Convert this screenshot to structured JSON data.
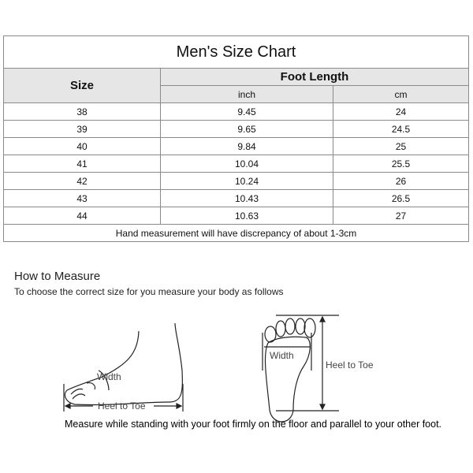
{
  "title": "Men's Size Chart",
  "headers": {
    "size": "Size",
    "foot_length": "Foot Length",
    "inch": "inch",
    "cm": "cm"
  },
  "rows": [
    {
      "size": "38",
      "inch": "9.45",
      "cm": "24"
    },
    {
      "size": "39",
      "inch": "9.65",
      "cm": "24.5"
    },
    {
      "size": "40",
      "inch": "9.84",
      "cm": "25"
    },
    {
      "size": "41",
      "inch": "10.04",
      "cm": "25.5"
    },
    {
      "size": "42",
      "inch": "10.24",
      "cm": "26"
    },
    {
      "size": "43",
      "inch": "10.43",
      "cm": "26.5"
    },
    {
      "size": "44",
      "inch": "10.63",
      "cm": "27"
    }
  ],
  "footnote": "Hand measurement will have discrepancy of about 1-3cm",
  "how_to": {
    "heading": "How to Measure",
    "subheading": "To choose the correct size for you measure your body as follows"
  },
  "diagram": {
    "side_width": "Width",
    "side_length": "Heel to Toe",
    "top_width": "Width",
    "top_length": "Heel to Toe"
  },
  "note": "Measure while standing with your foot firmly on the floor and parallel to your other foot."
}
